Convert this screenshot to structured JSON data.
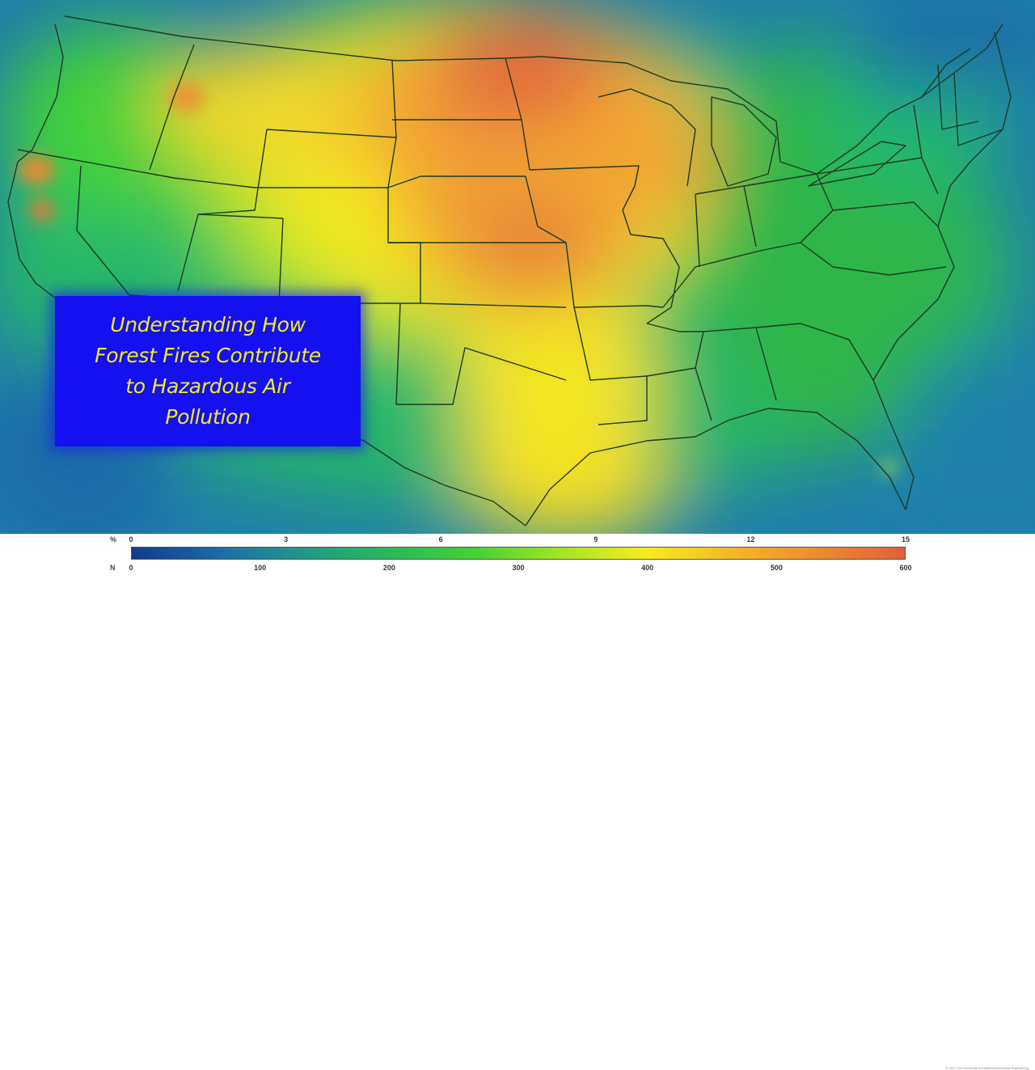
{
  "title": "Understanding How\nForest Fires Contribute\nto Hazardous Air\nPollution",
  "credit": "© 2017 The University of Iowa/Environmental Engineering",
  "legend": {
    "top_unit": "%",
    "bottom_unit": "N",
    "top_ticks": [
      "0",
      "3",
      "6",
      "9",
      "12",
      "15"
    ],
    "bottom_ticks": [
      "0",
      "100",
      "200",
      "300",
      "400",
      "500",
      "600"
    ],
    "colors": [
      "#103a8c",
      "#1d6aa8",
      "#1f9a8a",
      "#2ab85a",
      "#42d232",
      "#a6e428",
      "#f6ec1c",
      "#f6b62a",
      "#ee8a2e",
      "#e0603a"
    ]
  },
  "map_colors": {
    "ocean": "#1f6fa8",
    "low": "#25b86a",
    "mid": "#e8e424",
    "high": "#de5d3c",
    "border": "#1f3a26"
  }
}
